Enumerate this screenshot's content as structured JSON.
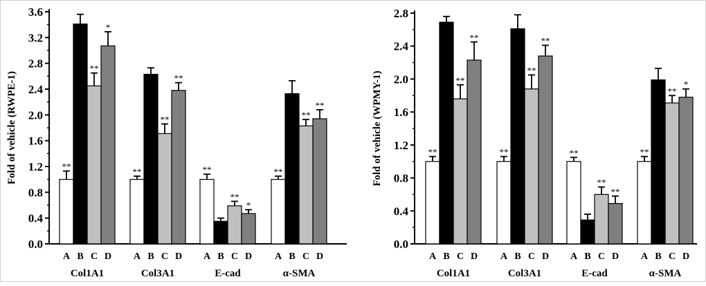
{
  "chart_data": [
    {
      "type": "bar",
      "panel": "left",
      "title": "",
      "xlabel": "",
      "ylabel": "Fold of vehicle (RWPE-1)",
      "ylim": [
        0,
        3.6
      ],
      "yticks": [
        "0.0",
        "0.4",
        "0.8",
        "1.2",
        "1.6",
        "2.0",
        "2.4",
        "2.8",
        "3.2",
        "3.6"
      ],
      "groups": [
        "Col1A1",
        "Col3A1",
        "E-cad",
        "α-SMA"
      ],
      "bar_labels": [
        "A",
        "B",
        "C",
        "D"
      ],
      "series": [
        {
          "name": "A",
          "color": "#ffffff",
          "values": [
            1.0,
            1.0,
            1.0,
            1.0
          ],
          "errors": [
            0.13,
            0.05,
            0.08,
            0.05
          ],
          "sig": [
            "**",
            "**",
            "**",
            "**"
          ]
        },
        {
          "name": "B",
          "color": "#000000",
          "values": [
            3.41,
            2.63,
            0.35,
            2.33
          ],
          "errors": [
            0.15,
            0.1,
            0.05,
            0.2
          ],
          "sig": [
            "",
            "",
            "",
            ""
          ]
        },
        {
          "name": "C",
          "color": "#c0c0c0",
          "values": [
            2.45,
            1.71,
            0.59,
            1.83
          ],
          "errors": [
            0.2,
            0.15,
            0.07,
            0.1
          ],
          "sig": [
            "**",
            "**",
            "**",
            "**"
          ]
        },
        {
          "name": "D",
          "color": "#808080",
          "values": [
            3.07,
            2.38,
            0.47,
            1.94
          ],
          "errors": [
            0.22,
            0.12,
            0.06,
            0.14
          ],
          "sig": [
            "*",
            "**",
            "*",
            "**"
          ]
        }
      ]
    },
    {
      "type": "bar",
      "panel": "right",
      "title": "",
      "xlabel": "",
      "ylabel": "Fold of vehicle (WPMY-1)",
      "ylim": [
        0,
        2.8
      ],
      "yticks": [
        "0.0",
        "0.4",
        "0.8",
        "1.2",
        "1.6",
        "2.0",
        "2.4",
        "2.8"
      ],
      "groups": [
        "Col1A1",
        "Col3A1",
        "E-cad",
        "α-SMA"
      ],
      "bar_labels": [
        "A",
        "B",
        "C",
        "D"
      ],
      "series": [
        {
          "name": "A",
          "color": "#ffffff",
          "values": [
            1.0,
            1.0,
            1.0,
            1.0
          ],
          "errors": [
            0.06,
            0.06,
            0.05,
            0.06
          ],
          "sig": [
            "**",
            "**",
            "**",
            "**"
          ]
        },
        {
          "name": "B",
          "color": "#000000",
          "values": [
            2.69,
            2.61,
            0.29,
            1.99
          ],
          "errors": [
            0.07,
            0.17,
            0.07,
            0.14
          ],
          "sig": [
            "",
            "",
            "",
            ""
          ]
        },
        {
          "name": "C",
          "color": "#c0c0c0",
          "values": [
            1.76,
            1.88,
            0.6,
            1.71
          ],
          "errors": [
            0.17,
            0.17,
            0.09,
            0.09
          ],
          "sig": [
            "**",
            "**",
            "**",
            "**"
          ]
        },
        {
          "name": "D",
          "color": "#808080",
          "values": [
            2.23,
            2.28,
            0.49,
            1.78
          ],
          "errors": [
            0.22,
            0.13,
            0.09,
            0.1
          ],
          "sig": [
            "**",
            "**",
            "**",
            "*"
          ]
        }
      ]
    }
  ]
}
